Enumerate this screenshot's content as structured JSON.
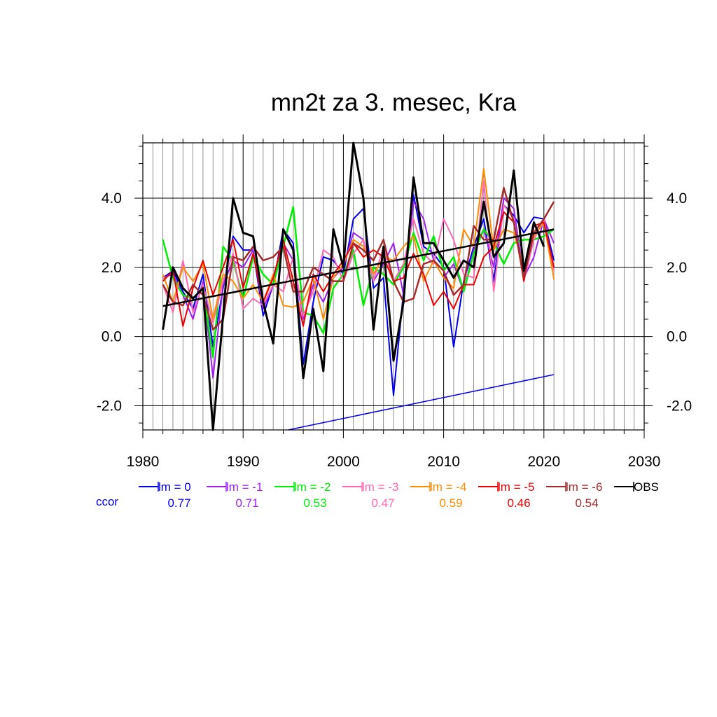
{
  "chart_data": {
    "type": "line",
    "title": "mn2t za 3. mesec, Kra",
    "xlabel": "",
    "ylabel": "",
    "xlim": [
      1980,
      2030
    ],
    "ylim": [
      -2.7,
      5.6
    ],
    "x_ticks": [
      "1980",
      "1990",
      "2000",
      "2010",
      "2020",
      "2030"
    ],
    "y_ticks": [
      "-2.0",
      "0.0",
      "2.0",
      "4.0"
    ],
    "y_tick_values": [
      -2,
      0,
      2,
      4
    ],
    "grid": true,
    "x": [
      1982,
      1983,
      1984,
      1985,
      1986,
      1987,
      1988,
      1989,
      1990,
      1991,
      1992,
      1993,
      1994,
      1995,
      1996,
      1997,
      1998,
      1999,
      2000,
      2001,
      2002,
      2003,
      2004,
      2005,
      2006,
      2007,
      2008,
      2009,
      2010,
      2011,
      2012,
      2013,
      2014,
      2015,
      2016,
      2017,
      2018,
      2019,
      2020,
      2021
    ],
    "series": [
      {
        "name": "lm = 0",
        "color": "#0000ee",
        "width": 2,
        "values": [
          1.7,
          1.9,
          1.3,
          0.8,
          1.8,
          -0.3,
          1.4,
          2.9,
          2.5,
          2.5,
          0.6,
          1.5,
          3.1,
          2.7,
          -0.8,
          1.0,
          2.3,
          2.2,
          1.8,
          3.4,
          3.7,
          1.4,
          1.7,
          -1.7,
          1.3,
          4.1,
          2.6,
          2.4,
          2.0,
          -0.3,
          1.6,
          2.6,
          3.4,
          1.6,
          3.8,
          3.5,
          3.0,
          3.45,
          3.4,
          2.2
        ]
      },
      {
        "name": "lm = -1",
        "color": "#a020f0",
        "width": 2,
        "values": [
          1.7,
          1.8,
          1.2,
          0.5,
          1.6,
          -1.2,
          1.5,
          2.2,
          2.0,
          2.5,
          0.8,
          1.5,
          2.7,
          2.2,
          0.5,
          1.5,
          1.0,
          1.7,
          2.0,
          3.0,
          2.8,
          1.6,
          2.1,
          2.7,
          1.2,
          3.9,
          3.4,
          2.2,
          1.7,
          2.1,
          1.3,
          2.5,
          3.1,
          2.0,
          4.0,
          3.7,
          1.7,
          2.3,
          3.4,
          2.7
        ]
      },
      {
        "name": "lm = -2",
        "color": "#00ee00",
        "width": 2.5,
        "values": [
          2.8,
          1.7,
          1.2,
          1.1,
          1.4,
          -0.6,
          2.6,
          2.2,
          1.1,
          2.3,
          1.8,
          1.5,
          2.6,
          3.75,
          0.7,
          0.6,
          0.1,
          1.4,
          1.8,
          2.5,
          0.9,
          2.0,
          1.8,
          1.5,
          2.0,
          3.0,
          2.2,
          2.9,
          1.9,
          2.3,
          1.3,
          2.4,
          3.1,
          2.7,
          2.1,
          2.7,
          2.8,
          2.8,
          2.9,
          3.1
        ]
      },
      {
        "name": "lm = -3",
        "color": "#ff69b4",
        "width": 2,
        "values": [
          1.5,
          0.7,
          2.2,
          0.7,
          1.5,
          0.4,
          1.6,
          2.4,
          0.8,
          1.1,
          0.9,
          1.5,
          1.3,
          2.3,
          0.6,
          1.3,
          2.5,
          2.3,
          1.6,
          2.4,
          2.8,
          1.6,
          2.6,
          1.6,
          2.1,
          3.4,
          2.4,
          2.1,
          3.4,
          2.8,
          1.8,
          1.7,
          4.5,
          1.3,
          3.8,
          3.4,
          1.6,
          2.8,
          3.4,
          1.9
        ]
      },
      {
        "name": "lm = -4",
        "color": "#ff8c00",
        "width": 2,
        "values": [
          1.8,
          1.0,
          2.0,
          1.6,
          2.1,
          0.5,
          1.8,
          1.6,
          1.1,
          1.5,
          1.0,
          1.8,
          0.9,
          0.85,
          1.0,
          1.7,
          0.5,
          1.7,
          2.1,
          2.8,
          2.6,
          1.8,
          2.3,
          2.2,
          2.6,
          2.9,
          1.6,
          2.2,
          1.7,
          1.4,
          3.1,
          2.6,
          4.85,
          2.5,
          3.1,
          3.0,
          2.0,
          2.9,
          3.3,
          1.65
        ]
      },
      {
        "name": "lm = -5",
        "color": "#ee0000",
        "width": 2,
        "values": [
          1.6,
          1.9,
          0.3,
          1.4,
          2.2,
          1.2,
          2.0,
          2.8,
          1.4,
          2.4,
          1.0,
          1.7,
          2.8,
          1.6,
          0.3,
          1.8,
          1.3,
          1.8,
          2.2,
          2.7,
          2.3,
          2.5,
          2.3,
          1.6,
          1.7,
          2.4,
          1.8,
          0.9,
          1.3,
          0.8,
          1.5,
          1.5,
          2.3,
          2.6,
          3.6,
          3.3,
          1.6,
          3.2,
          3.3,
          2.0
        ]
      },
      {
        "name": "lm = -6",
        "color": "#a52a2a",
        "width": 2.5,
        "values": [
          1.5,
          1.0,
          0.9,
          1.5,
          1.2,
          0.2,
          0.5,
          2.3,
          2.2,
          2.6,
          2.2,
          2.3,
          2.6,
          1.3,
          1.3,
          2.0,
          1.8,
          1.6,
          1.6,
          2.7,
          2.5,
          2.2,
          2.8,
          1.6,
          1.0,
          1.1,
          2.1,
          2.2,
          1.9,
          1.2,
          1.5,
          3.2,
          2.8,
          2.8,
          4.3,
          3.3,
          1.7,
          3.0,
          3.4,
          3.9
        ]
      },
      {
        "name": "OBS",
        "color": "#000000",
        "width": 3,
        "values": [
          0.2,
          2.0,
          1.4,
          1.1,
          1.4,
          -2.7,
          0.6,
          4.0,
          3.0,
          2.9,
          1.0,
          -0.2,
          3.1,
          2.5,
          -1.2,
          0.8,
          -1.0,
          3.1,
          2.0,
          5.6,
          4.0,
          0.2,
          2.6,
          -0.7,
          1.0,
          4.6,
          2.7,
          2.7,
          2.2,
          1.7,
          2.2,
          2.0,
          3.9,
          2.3,
          2.7,
          4.8,
          1.9,
          3.3,
          2.6,
          null
        ]
      }
    ],
    "trends": [
      {
        "series": "OBS",
        "color": "#000000",
        "width": 2.5,
        "x": [
          1982,
          2021
        ],
        "y": [
          0.88,
          3.1
        ]
      },
      {
        "series": "lm = 0",
        "color": "#0000ee",
        "width": 1.5,
        "x": [
          1994.5,
          2021
        ],
        "y": [
          -2.7,
          -1.1
        ]
      }
    ],
    "legend": {
      "placement": "bottom",
      "header": "ccor",
      "header_color": "#0000ee",
      "entries": [
        {
          "label": "lm = 0",
          "ccor": "0.77",
          "color": "#0000ee"
        },
        {
          "label": "lm = -1",
          "ccor": "0.71",
          "color": "#a020f0"
        },
        {
          "label": "lm = -2",
          "ccor": "0.53",
          "color": "#00ee00"
        },
        {
          "label": "lm = -3",
          "ccor": "0.47",
          "color": "#ff69b4"
        },
        {
          "label": "lm = -4",
          "ccor": "0.59",
          "color": "#ff8c00"
        },
        {
          "label": "lm = -5",
          "ccor": "0.46",
          "color": "#ee0000"
        },
        {
          "label": "lm = -6",
          "ccor": "0.54",
          "color": "#a52a2a"
        },
        {
          "label": "OBS",
          "ccor": "",
          "color": "#000000"
        }
      ]
    }
  }
}
